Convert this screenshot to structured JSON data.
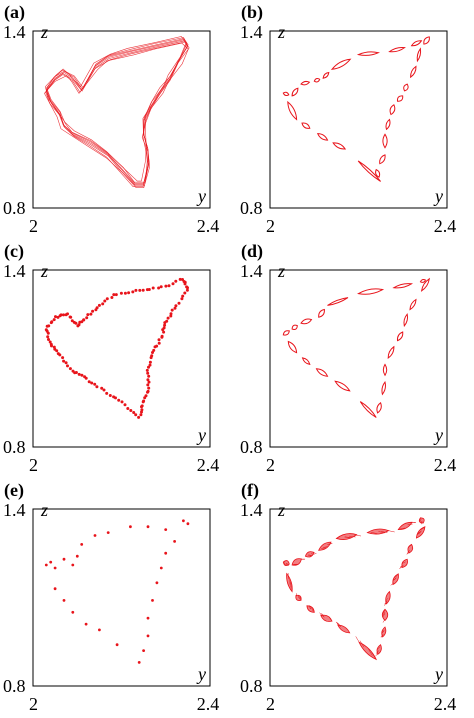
{
  "figure": {
    "panels": [
      {
        "label": "(a)"
      },
      {
        "label": "(b)"
      },
      {
        "label": "(c)"
      },
      {
        "label": "(d)"
      },
      {
        "label": "(e)"
      },
      {
        "label": "(f)"
      }
    ]
  },
  "chart_data": [
    {
      "panel": "(a)",
      "type": "scatter",
      "style": "dense-loop",
      "xlabel": "y",
      "ylabel": "z",
      "xlim": [
        2.0,
        2.4
      ],
      "ylim": [
        0.8,
        1.4
      ],
      "xticks": [
        "2",
        "2.4"
      ],
      "yticks": [
        "0.8",
        "1.4"
      ],
      "color": "#e8141b",
      "points": [
        [
          2.03,
          1.2
        ],
        [
          2.05,
          1.24
        ],
        [
          2.07,
          1.26
        ],
        [
          2.09,
          1.24
        ],
        [
          2.11,
          1.2
        ],
        [
          2.14,
          1.28
        ],
        [
          2.17,
          1.31
        ],
        [
          2.22,
          1.33
        ],
        [
          2.28,
          1.35
        ],
        [
          2.34,
          1.37
        ],
        [
          2.35,
          1.35
        ],
        [
          2.33,
          1.3
        ],
        [
          2.31,
          1.24
        ],
        [
          2.29,
          1.2
        ],
        [
          2.27,
          1.15
        ],
        [
          2.25,
          1.1
        ],
        [
          2.25,
          1.05
        ],
        [
          2.26,
          1.0
        ],
        [
          2.26,
          0.95
        ],
        [
          2.25,
          0.88
        ],
        [
          2.23,
          0.88
        ],
        [
          2.2,
          0.93
        ],
        [
          2.17,
          0.98
        ],
        [
          2.13,
          1.02
        ],
        [
          2.09,
          1.05
        ],
        [
          2.07,
          1.08
        ],
        [
          2.06,
          1.12
        ],
        [
          2.04,
          1.16
        ]
      ]
    },
    {
      "panel": "(b)",
      "type": "scatter",
      "style": "islands",
      "xlabel": "y",
      "ylabel": "z",
      "xlim": [
        2.0,
        2.4
      ],
      "ylim": [
        0.8,
        1.4
      ],
      "xticks": [
        "2",
        "2.4"
      ],
      "yticks": [
        "0.8",
        "1.4"
      ],
      "color": "#e8141b",
      "points": [
        [
          2.03,
          1.19
        ],
        [
          2.05,
          1.18
        ],
        [
          2.07,
          1.22
        ],
        [
          2.1,
          1.23
        ],
        [
          2.12,
          1.24
        ],
        [
          2.14,
          1.27
        ],
        [
          2.2,
          1.32
        ],
        [
          2.27,
          1.33
        ],
        [
          2.32,
          1.35
        ],
        [
          2.36,
          1.38
        ],
        [
          2.34,
          1.34
        ],
        [
          2.33,
          1.28
        ],
        [
          2.31,
          1.22
        ],
        [
          2.3,
          1.18
        ],
        [
          2.28,
          1.15
        ],
        [
          2.27,
          1.1
        ],
        [
          2.26,
          1.05
        ],
        [
          2.26,
          0.98
        ],
        [
          2.24,
          0.93
        ],
        [
          2.25,
          0.89
        ],
        [
          2.17,
          1.0
        ],
        [
          2.13,
          1.03
        ],
        [
          2.09,
          1.07
        ],
        [
          2.06,
          1.1
        ]
      ]
    },
    {
      "panel": "(c)",
      "type": "scatter",
      "style": "chains",
      "xlabel": "y",
      "ylabel": "z",
      "xlim": [
        2.0,
        2.4
      ],
      "ylim": [
        0.8,
        1.4
      ],
      "xticks": [
        "2",
        "2.4"
      ],
      "yticks": [
        "0.8",
        "1.4"
      ],
      "color": "#e8141b",
      "points": [
        [
          2.03,
          1.2
        ],
        [
          2.05,
          1.24
        ],
        [
          2.08,
          1.25
        ],
        [
          2.1,
          1.21
        ],
        [
          2.12,
          1.24
        ],
        [
          2.15,
          1.28
        ],
        [
          2.19,
          1.32
        ],
        [
          2.24,
          1.33
        ],
        [
          2.29,
          1.34
        ],
        [
          2.34,
          1.37
        ],
        [
          2.35,
          1.33
        ],
        [
          2.32,
          1.27
        ],
        [
          2.3,
          1.22
        ],
        [
          2.29,
          1.17
        ],
        [
          2.27,
          1.12
        ],
        [
          2.26,
          1.06
        ],
        [
          2.26,
          1.0
        ],
        [
          2.25,
          0.95
        ],
        [
          2.24,
          0.9
        ],
        [
          2.2,
          0.95
        ],
        [
          2.16,
          0.99
        ],
        [
          2.12,
          1.03
        ],
        [
          2.09,
          1.06
        ],
        [
          2.06,
          1.11
        ],
        [
          2.04,
          1.15
        ]
      ]
    },
    {
      "panel": "(d)",
      "type": "scatter",
      "style": "islands",
      "xlabel": "y",
      "ylabel": "z",
      "xlim": [
        2.0,
        2.4
      ],
      "ylim": [
        0.8,
        1.4
      ],
      "xticks": [
        "2",
        "2.4"
      ],
      "yticks": [
        "0.8",
        "1.4"
      ],
      "color": "#e8141b",
      "points": [
        [
          2.03,
          1.18
        ],
        [
          2.05,
          1.2
        ],
        [
          2.07,
          1.22
        ],
        [
          2.11,
          1.24
        ],
        [
          2.13,
          1.28
        ],
        [
          2.2,
          1.32
        ],
        [
          2.28,
          1.34
        ],
        [
          2.34,
          1.36
        ],
        [
          2.36,
          1.37
        ],
        [
          2.33,
          1.3
        ],
        [
          2.31,
          1.25
        ],
        [
          2.3,
          1.19
        ],
        [
          2.28,
          1.14
        ],
        [
          2.26,
          1.08
        ],
        [
          2.26,
          1.02
        ],
        [
          2.25,
          0.95
        ],
        [
          2.24,
          0.9
        ],
        [
          2.18,
          0.99
        ],
        [
          2.13,
          1.04
        ],
        [
          2.09,
          1.08
        ],
        [
          2.06,
          1.12
        ]
      ]
    },
    {
      "panel": "(e)",
      "type": "scatter",
      "style": "sparse",
      "xlabel": "y",
      "ylabel": "z",
      "xlim": [
        2.0,
        2.4
      ],
      "ylim": [
        0.8,
        1.4
      ],
      "xticks": [
        "2",
        "2.4"
      ],
      "yticks": [
        "0.8",
        "1.4"
      ],
      "color": "#e8141b",
      "points": [
        [
          2.03,
          1.21
        ],
        [
          2.04,
          1.22
        ],
        [
          2.05,
          1.2
        ],
        [
          2.07,
          1.23
        ],
        [
          2.09,
          1.21
        ],
        [
          2.1,
          1.24
        ],
        [
          2.11,
          1.28
        ],
        [
          2.14,
          1.31
        ],
        [
          2.17,
          1.32
        ],
        [
          2.22,
          1.34
        ],
        [
          2.26,
          1.34
        ],
        [
          2.3,
          1.33
        ],
        [
          2.34,
          1.36
        ],
        [
          2.35,
          1.35
        ],
        [
          2.32,
          1.29
        ],
        [
          2.3,
          1.25
        ],
        [
          2.29,
          1.2
        ],
        [
          2.28,
          1.15
        ],
        [
          2.27,
          1.09
        ],
        [
          2.26,
          1.03
        ],
        [
          2.26,
          0.97
        ],
        [
          2.25,
          0.92
        ],
        [
          2.24,
          0.88
        ],
        [
          2.19,
          0.94
        ],
        [
          2.15,
          0.99
        ],
        [
          2.12,
          1.01
        ],
        [
          2.09,
          1.05
        ],
        [
          2.07,
          1.09
        ],
        [
          2.05,
          1.13
        ]
      ]
    },
    {
      "panel": "(f)",
      "type": "scatter",
      "style": "filled-islands",
      "xlabel": "y",
      "ylabel": "z",
      "xlim": [
        2.0,
        2.4
      ],
      "ylim": [
        0.8,
        1.4
      ],
      "xticks": [
        "2",
        "2.4"
      ],
      "yticks": [
        "0.8",
        "1.4"
      ],
      "color": "#e8141b",
      "points": [
        [
          2.03,
          1.22
        ],
        [
          2.05,
          1.21
        ],
        [
          2.08,
          1.24
        ],
        [
          2.11,
          1.26
        ],
        [
          2.15,
          1.3
        ],
        [
          2.22,
          1.32
        ],
        [
          2.29,
          1.33
        ],
        [
          2.34,
          1.37
        ],
        [
          2.35,
          1.34
        ],
        [
          2.32,
          1.28
        ],
        [
          2.31,
          1.23
        ],
        [
          2.29,
          1.18
        ],
        [
          2.27,
          1.12
        ],
        [
          2.26,
          1.06
        ],
        [
          2.26,
          1.0
        ],
        [
          2.25,
          0.94
        ],
        [
          2.24,
          0.89
        ],
        [
          2.18,
          0.98
        ],
        [
          2.14,
          1.02
        ],
        [
          2.1,
          1.05
        ],
        [
          2.07,
          1.09
        ],
        [
          2.05,
          1.12
        ]
      ]
    }
  ]
}
